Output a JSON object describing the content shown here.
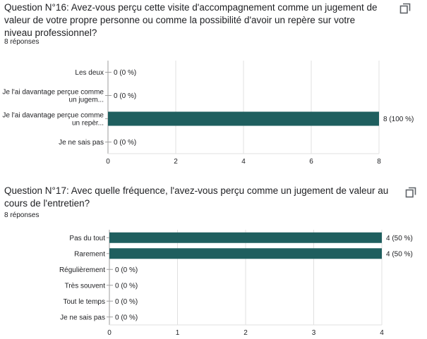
{
  "questions": [
    {
      "title": "Question N°16: Avez-vous perçu cette visite d'accompagnement comme un jugement de valeur de votre propre personne ou comme la possibilité d'avoir un repère sur votre niveau professionnel?",
      "responses": "8 réponses",
      "copy_icon": "copy-icon"
    },
    {
      "title": "Question N°17: Avec quelle fréquence, l'avez-vous perçu comme un jugement de valeur au cours de l'entretien?",
      "responses": "8 réponses",
      "copy_icon": "copy-icon"
    }
  ],
  "chart_data": [
    {
      "type": "bar",
      "orientation": "horizontal",
      "categories": [
        [
          "Les deux"
        ],
        [
          "Je l'ai davantage perçue comme",
          "un jugem..."
        ],
        [
          "Je l'ai davantage perçue comme",
          "un repèr..."
        ],
        [
          "Je ne sais pas"
        ]
      ],
      "values": [
        0,
        0,
        8,
        0
      ],
      "data_labels": [
        "0 (0 %)",
        "0 (0 %)",
        "8 (100 %)",
        "0 (0 %)"
      ],
      "xlim": [
        0,
        8
      ],
      "xticks": [
        0,
        2,
        4,
        6,
        8
      ],
      "grid": true,
      "color": "#1f5f5f"
    },
    {
      "type": "bar",
      "orientation": "horizontal",
      "categories": [
        [
          "Pas du tout"
        ],
        [
          "Rarement"
        ],
        [
          "Régulièrement"
        ],
        [
          "Très souvent"
        ],
        [
          "Tout le temps"
        ],
        [
          "Je ne sais pas"
        ]
      ],
      "values": [
        4,
        4,
        0,
        0,
        0,
        0
      ],
      "data_labels": [
        "4 (50 %)",
        "4 (50 %)",
        "0 (0 %)",
        "0 (0 %)",
        "0 (0 %)",
        "0 (0 %)"
      ],
      "xlim": [
        0,
        4
      ],
      "xticks": [
        0,
        1,
        2,
        3,
        4
      ],
      "grid": true,
      "color": "#1f5f5f"
    }
  ]
}
